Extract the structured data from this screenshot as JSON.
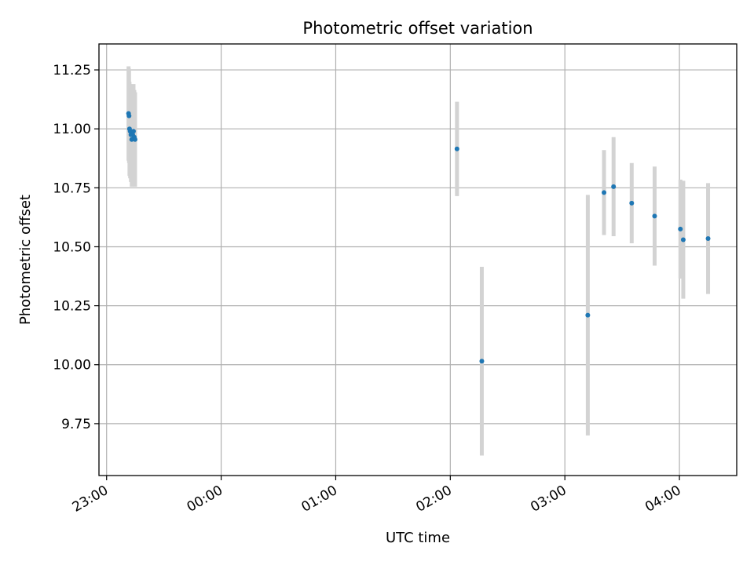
{
  "chart_data": {
    "type": "scatter",
    "title": "Photometric offset variation",
    "xlabel": "UTC time",
    "ylabel": "Photometric offset",
    "x_ticks": [
      "23:00",
      "00:00",
      "01:00",
      "02:00",
      "03:00",
      "04:00"
    ],
    "y_ticks": [
      "9.75",
      "10.00",
      "10.25",
      "10.50",
      "10.75",
      "11.00",
      "11.25"
    ],
    "y_tick_values": [
      9.75,
      10.0,
      10.25,
      10.5,
      10.75,
      11.0,
      11.25
    ],
    "xlim": [
      "22:56",
      "04:30"
    ],
    "ylim": [
      9.53,
      11.36
    ],
    "grid": true,
    "point_color": "#1f77b4",
    "errorbar_color": "#d3d3d3",
    "series": [
      {
        "points": [
          {
            "x": "23:11:30",
            "y": 11.065,
            "err": 0.2
          },
          {
            "x": "23:11:45",
            "y": 11.055,
            "err": 0.2
          },
          {
            "x": "23:12:00",
            "y": 11.0,
            "err": 0.2
          },
          {
            "x": "23:12:20",
            "y": 10.99,
            "err": 0.2
          },
          {
            "x": "23:12:45",
            "y": 10.975,
            "err": 0.2
          },
          {
            "x": "23:13:10",
            "y": 10.955,
            "err": 0.2
          },
          {
            "x": "23:13:40",
            "y": 10.975,
            "err": 0.2
          },
          {
            "x": "23:14:05",
            "y": 10.99,
            "err": 0.2
          },
          {
            "x": "23:14:30",
            "y": 10.965,
            "err": 0.2
          },
          {
            "x": "23:14:55",
            "y": 10.955,
            "err": 0.2
          },
          {
            "x": "02:03:30",
            "y": 10.915,
            "err": 0.2
          },
          {
            "x": "02:16:30",
            "y": 10.015,
            "err": 0.4
          },
          {
            "x": "03:12:00",
            "y": 10.21,
            "err": 0.51
          },
          {
            "x": "03:20:30",
            "y": 10.73,
            "err": 0.18
          },
          {
            "x": "03:25:30",
            "y": 10.755,
            "err": 0.21
          },
          {
            "x": "03:35:00",
            "y": 10.685,
            "err": 0.17
          },
          {
            "x": "03:47:00",
            "y": 10.63,
            "err": 0.21
          },
          {
            "x": "04:00:30",
            "y": 10.575,
            "err": 0.21
          },
          {
            "x": "04:02:00",
            "y": 10.53,
            "err": 0.25
          },
          {
            "x": "04:15:00",
            "y": 10.535,
            "err": 0.235
          }
        ]
      }
    ]
  }
}
